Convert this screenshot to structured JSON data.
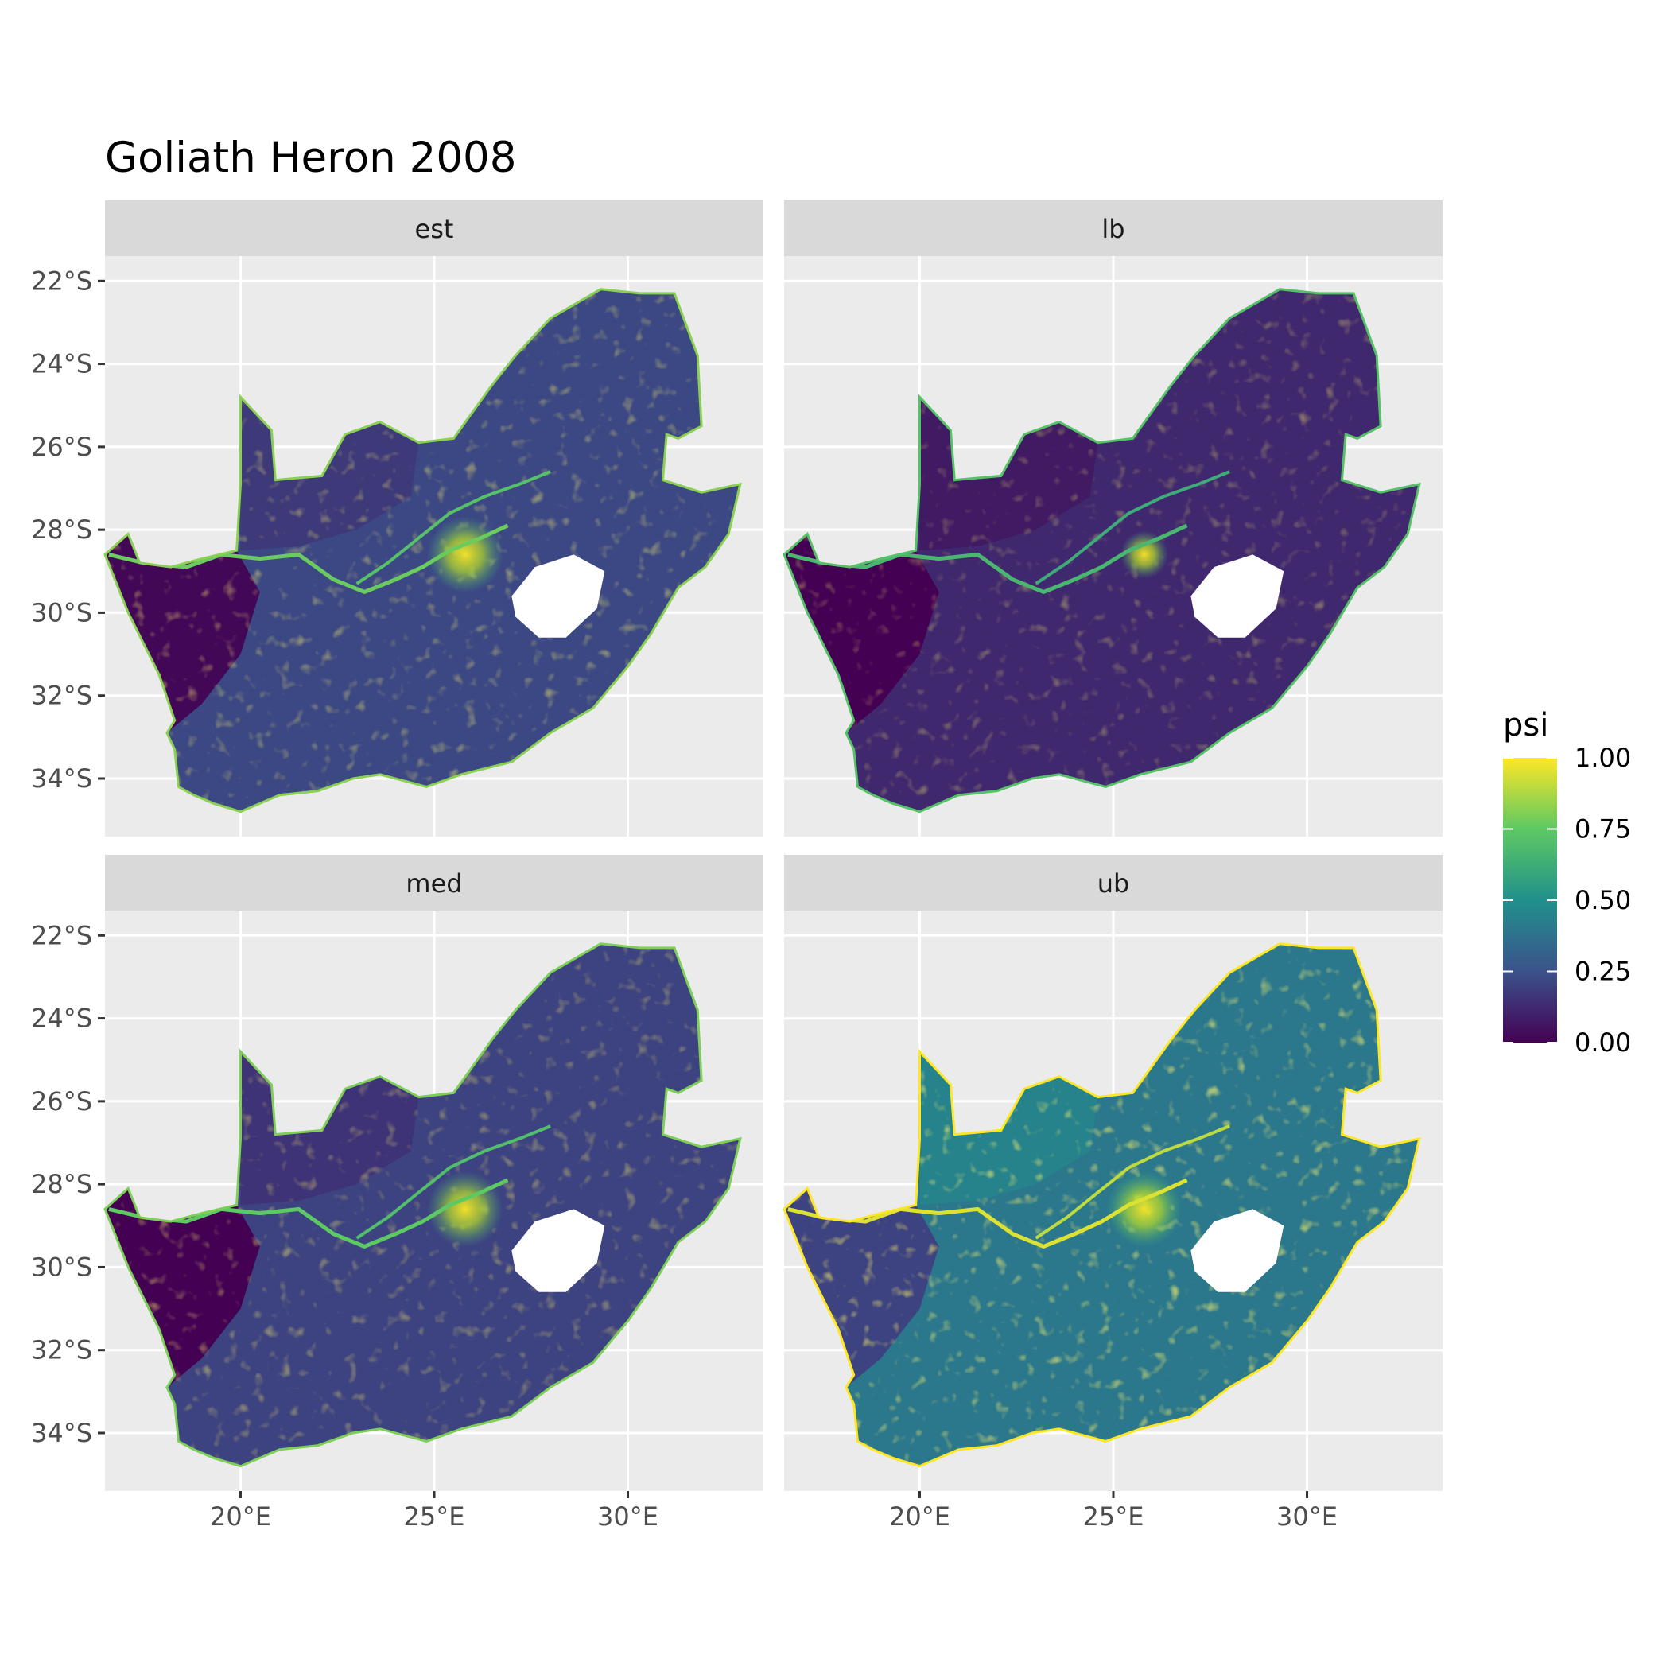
{
  "title": "Goliath Heron 2008",
  "chart_data": {
    "type": "heatmap",
    "title": "Goliath Heron 2008",
    "variable": "psi",
    "panels": [
      "est",
      "lb",
      "med",
      "ub"
    ],
    "xlim": [
      16.5,
      33.5
    ],
    "ylim": [
      -35.4,
      -21.4
    ],
    "x_ticks": [
      20,
      25,
      30
    ],
    "x_tick_labels": [
      "20°E",
      "25°E",
      "30°E"
    ],
    "y_ticks": [
      -22,
      -24,
      -26,
      -28,
      -30,
      -32,
      -34
    ],
    "y_tick_labels": [
      "22°S",
      "24°S",
      "26°S",
      "28°S",
      "30°S",
      "32°S",
      "34°S"
    ],
    "legend": {
      "title": "psi",
      "position": "right",
      "range": [
        0,
        1
      ],
      "breaks": [
        1.0,
        0.75,
        0.5,
        0.25,
        0.0
      ],
      "labels": [
        "1.00",
        "0.75",
        "0.50",
        "0.25",
        "0.00"
      ],
      "palette": [
        "#440154",
        "#3b528b",
        "#21908c",
        "#5dc963",
        "#fde725"
      ]
    },
    "panel_mean_psi": {
      "est": 0.22,
      "lb": 0.12,
      "med": 0.2,
      "ub": 0.4
    },
    "outline_lonlat": [
      [
        16.5,
        -28.6
      ],
      [
        17.1,
        -28.1
      ],
      [
        17.4,
        -28.8
      ],
      [
        18.2,
        -28.9
      ],
      [
        19.0,
        -28.7
      ],
      [
        19.9,
        -28.5
      ],
      [
        20.0,
        -26.9
      ],
      [
        20.0,
        -24.8
      ],
      [
        20.8,
        -25.6
      ],
      [
        20.9,
        -26.8
      ],
      [
        22.1,
        -26.7
      ],
      [
        22.7,
        -25.7
      ],
      [
        23.6,
        -25.4
      ],
      [
        24.6,
        -25.9
      ],
      [
        25.5,
        -25.8
      ],
      [
        26.5,
        -24.5
      ],
      [
        27.1,
        -23.8
      ],
      [
        28.0,
        -22.9
      ],
      [
        29.3,
        -22.2
      ],
      [
        30.3,
        -22.3
      ],
      [
        31.2,
        -22.3
      ],
      [
        31.8,
        -23.8
      ],
      [
        31.9,
        -25.5
      ],
      [
        31.3,
        -25.8
      ],
      [
        31.0,
        -25.7
      ],
      [
        30.9,
        -26.8
      ],
      [
        31.9,
        -27.1
      ],
      [
        32.9,
        -26.9
      ],
      [
        32.6,
        -28.1
      ],
      [
        32.0,
        -28.9
      ],
      [
        31.3,
        -29.4
      ],
      [
        30.6,
        -30.5
      ],
      [
        30.0,
        -31.3
      ],
      [
        29.1,
        -32.3
      ],
      [
        28.0,
        -32.9
      ],
      [
        27.0,
        -33.6
      ],
      [
        25.7,
        -33.9
      ],
      [
        24.8,
        -34.2
      ],
      [
        23.6,
        -33.9
      ],
      [
        22.9,
        -34.0
      ],
      [
        22.0,
        -34.3
      ],
      [
        21.0,
        -34.4
      ],
      [
        20.0,
        -34.8
      ],
      [
        19.3,
        -34.6
      ],
      [
        18.8,
        -34.4
      ],
      [
        18.4,
        -34.2
      ],
      [
        18.3,
        -33.3
      ],
      [
        18.1,
        -32.9
      ],
      [
        18.3,
        -32.6
      ],
      [
        17.9,
        -31.5
      ],
      [
        17.1,
        -30.0
      ],
      [
        16.5,
        -28.6
      ]
    ],
    "lesotho_outline_lonlat": [
      [
        27.0,
        -29.6
      ],
      [
        27.6,
        -28.9
      ],
      [
        28.6,
        -28.6
      ],
      [
        29.4,
        -29.0
      ],
      [
        29.2,
        -29.9
      ],
      [
        28.4,
        -30.6
      ],
      [
        27.7,
        -30.6
      ],
      [
        27.1,
        -30.1
      ],
      [
        27.0,
        -29.6
      ]
    ],
    "northern_cape_west_lonlat": [
      [
        16.5,
        -28.6
      ],
      [
        17.1,
        -28.1
      ],
      [
        17.4,
        -28.8
      ],
      [
        18.2,
        -28.9
      ],
      [
        19.0,
        -28.7
      ],
      [
        19.9,
        -28.5
      ],
      [
        20.5,
        -29.5
      ],
      [
        20.0,
        -31.0
      ],
      [
        19.0,
        -32.2
      ],
      [
        18.1,
        -32.9
      ],
      [
        17.9,
        -31.5
      ],
      [
        17.1,
        -30.0
      ],
      [
        16.5,
        -28.6
      ]
    ],
    "kalahari_lonlat": [
      [
        20.0,
        -28.5
      ],
      [
        20.0,
        -24.8
      ],
      [
        20.8,
        -25.6
      ],
      [
        20.9,
        -26.8
      ],
      [
        22.1,
        -26.7
      ],
      [
        22.7,
        -25.7
      ],
      [
        23.6,
        -25.4
      ],
      [
        24.6,
        -25.9
      ],
      [
        24.4,
        -27.2
      ],
      [
        23.0,
        -28.0
      ],
      [
        21.5,
        -28.4
      ],
      [
        20.0,
        -28.5
      ]
    ],
    "orange_river_lonlat": [
      [
        16.6,
        -28.6
      ],
      [
        17.5,
        -28.8
      ],
      [
        18.6,
        -28.9
      ],
      [
        19.5,
        -28.6
      ],
      [
        20.5,
        -28.7
      ],
      [
        21.5,
        -28.6
      ],
      [
        22.4,
        -29.2
      ],
      [
        23.2,
        -29.5
      ],
      [
        24.0,
        -29.2
      ],
      [
        24.7,
        -28.9
      ],
      [
        25.4,
        -28.5
      ],
      [
        26.2,
        -28.2
      ],
      [
        26.9,
        -27.9
      ]
    ],
    "vaal_river_lonlat": [
      [
        23.0,
        -29.3
      ],
      [
        23.8,
        -28.8
      ],
      [
        24.6,
        -28.2
      ],
      [
        25.4,
        -27.6
      ],
      [
        26.3,
        -27.2
      ],
      [
        27.2,
        -26.9
      ],
      [
        28.0,
        -26.6
      ]
    ],
    "gauteng_hotspot_lonlat": [
      25.8,
      -28.6
    ]
  }
}
